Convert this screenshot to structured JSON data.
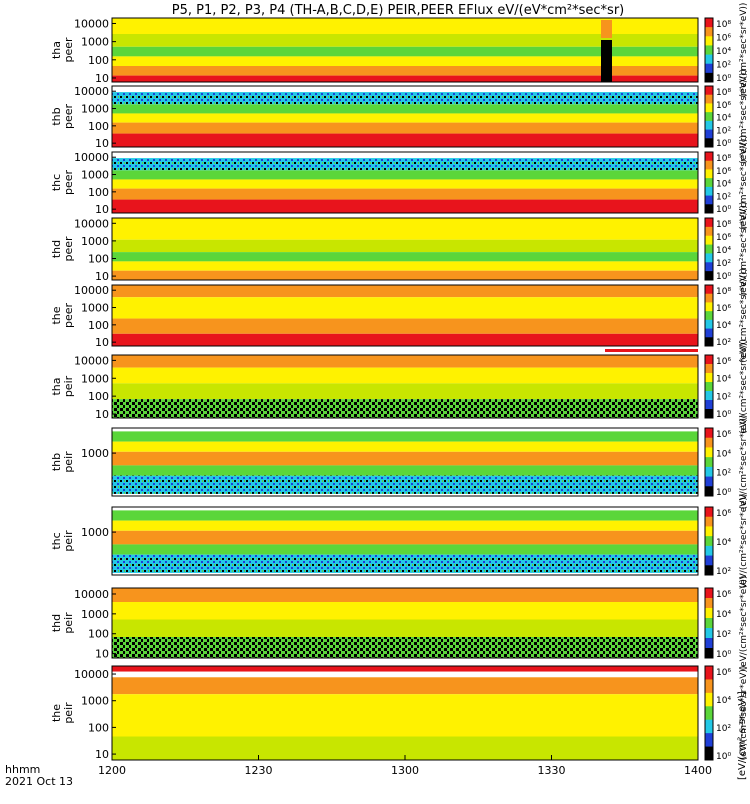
{
  "title": "P5, P1, P2, P3, P4 (TH-A,B,C,D,E) PEIR,PEER EFlux eV/(eV*cm²*sec*sr)",
  "x_axis": {
    "label_line1": "hhmm",
    "label_line2": "2021 Oct 13",
    "ticks": [
      "1200",
      "1230",
      "1300",
      "1330",
      "1400"
    ],
    "tick_values": [
      0,
      30,
      60,
      90,
      120
    ],
    "range_minutes": [
      0,
      120
    ]
  },
  "colorbar_label": "[eV/(cm²-s-sr-eV)]",
  "colors": {
    "red": "#e8141c",
    "orange": "#f7941d",
    "yellow": "#fff200",
    "yellowgreen": "#c8e600",
    "green": "#5bd63a",
    "cyan": "#23c8e6",
    "blue": "#1f3fd6",
    "black": "#000000",
    "white": "#ffffff"
  },
  "chart_data": [
    {
      "type": "heatmap",
      "name": "thd-peer",
      "ylabel": "tha\npeer",
      "yticks": [
        "10000",
        "1000",
        "100",
        "10"
      ],
      "ytick_values": [
        10000,
        1000,
        100,
        10
      ],
      "ylim": [
        6,
        20000
      ],
      "zscale": "log",
      "colorbar_ticks": [
        "10⁸",
        "10⁶",
        "10⁴",
        "10²",
        "10⁰"
      ],
      "colorbar_ticklabels": [
        "108",
        "106",
        "104",
        "102",
        "100"
      ],
      "colorbar_text": "(eV/(cm²*sec*sr*eV))"
    },
    {
      "type": "heatmap",
      "name": "thb-peer",
      "ylabel": "thb\npeer",
      "yticks": [
        "10000",
        "1000",
        "100",
        "10"
      ],
      "ytick_values": [
        10000,
        1000,
        100,
        10
      ],
      "ylim": [
        6,
        20000
      ],
      "zscale": "log",
      "colorbar_ticks": [
        "10⁸",
        "10⁶",
        "10⁴",
        "10²",
        "10⁰"
      ],
      "colorbar_ticklabels": [
        "108",
        "106",
        "104",
        "102",
        "100"
      ],
      "colorbar_text": "(eV/(cm²*sec*sr*eV))"
    },
    {
      "type": "heatmap",
      "name": "thc-peer",
      "ylabel": "thc\npeer",
      "yticks": [
        "10000",
        "1000",
        "100",
        "10"
      ],
      "ytick_values": [
        10000,
        1000,
        100,
        10
      ],
      "ylim": [
        6,
        20000
      ],
      "zscale": "log",
      "colorbar_ticks": [
        "10⁸",
        "10⁶",
        "10⁴",
        "10²",
        "10⁰"
      ],
      "colorbar_ticklabels": [
        "108",
        "106",
        "104",
        "102",
        "100"
      ],
      "colorbar_text": "(eV/(cm²*sec*sr*eV))"
    },
    {
      "type": "heatmap",
      "name": "thd-peer2",
      "ylabel": "thd\npeer",
      "yticks": [
        "10000",
        "1000",
        "100",
        "10"
      ],
      "ytick_values": [
        10000,
        1000,
        100,
        10
      ],
      "ylim": [
        6,
        20000
      ],
      "zscale": "log",
      "colorbar_ticks": [
        "10⁸",
        "10⁶",
        "10⁴",
        "10²",
        "10⁰"
      ],
      "colorbar_ticklabels": [
        "108",
        "106",
        "104",
        "102",
        "100"
      ],
      "colorbar_text": "(eV/(cm²*sec*sr*eV))"
    },
    {
      "type": "heatmap",
      "name": "the-peer",
      "ylabel": "the\npeer",
      "yticks": [
        "10000",
        "1000",
        "100",
        "10"
      ],
      "ytick_values": [
        10000,
        1000,
        100,
        10
      ],
      "ylim": [
        6,
        20000
      ],
      "zscale": "log",
      "colorbar_ticks": [
        "10⁸",
        "10⁶",
        "10⁴",
        "10²"
      ],
      "colorbar_ticklabels": [
        "108",
        "106",
        "104",
        "102"
      ],
      "colorbar_text": "(eV/(cm²*sec*sr*eV))"
    },
    {
      "type": "heatmap",
      "name": "tha-peir",
      "ylabel": "tha\npeir",
      "yticks": [
        "10000",
        "1000",
        "100",
        "10"
      ],
      "ytick_values": [
        10000,
        1000,
        100,
        10
      ],
      "ylim": [
        6,
        20000
      ],
      "zscale": "log",
      "colorbar_ticks": [
        "10⁶",
        "10⁴",
        "10²",
        "10⁰"
      ],
      "colorbar_ticklabels": [
        "106",
        "104",
        "102",
        "100"
      ],
      "colorbar_text": "(eV/(cm²*sec*sr*eV))"
    },
    {
      "type": "heatmap",
      "name": "thb-peir",
      "ylabel": "thb\npeir",
      "yticks": [
        "1000"
      ],
      "ytick_values": [
        1000
      ],
      "ylim": [
        6,
        20000
      ],
      "zscale": "log",
      "colorbar_ticks": [
        "10⁶",
        "10⁴",
        "10²",
        "10⁰"
      ],
      "colorbar_ticklabels": [
        "106",
        "104",
        "102",
        "100"
      ],
      "colorbar_text": "(eV/(cm²*sec*sr*eV))"
    },
    {
      "type": "heatmap",
      "name": "thc-peir",
      "ylabel": "thc\npeir",
      "yticks": [
        "1000"
      ],
      "ytick_values": [
        1000
      ],
      "ylim": [
        6,
        20000
      ],
      "zscale": "log",
      "colorbar_ticks": [
        "10⁶",
        "10⁴",
        "10²"
      ],
      "colorbar_ticklabels": [
        "106",
        "104",
        "102"
      ],
      "colorbar_text": "(eV/(cm²*sec*sr*eV))"
    },
    {
      "type": "heatmap",
      "name": "thd-peir",
      "ylabel": "thd\npeir",
      "yticks": [
        "10000",
        "1000",
        "100",
        "10"
      ],
      "ytick_values": [
        10000,
        1000,
        100,
        10
      ],
      "ylim": [
        6,
        20000
      ],
      "zscale": "log",
      "colorbar_ticks": [
        "10⁶",
        "10⁴",
        "10²",
        "10⁰"
      ],
      "colorbar_ticklabels": [
        "106",
        "104",
        "102",
        "100"
      ],
      "colorbar_text": "(eV/(cm²*sec*sr*eV))"
    },
    {
      "type": "heatmap",
      "name": "the-peir",
      "ylabel": "the\npeir",
      "yticks": [
        "10000",
        "1000",
        "100",
        "10"
      ],
      "ytick_values": [
        10000,
        1000,
        100,
        10
      ],
      "ylim": [
        6,
        20000
      ],
      "zscale": "log",
      "colorbar_ticks": [
        "10⁶",
        "10⁴",
        "10²",
        "10⁰"
      ],
      "colorbar_ticklabels": [
        "106",
        "104",
        "102",
        "100"
      ],
      "colorbar_text": "(eV/(cm²*sec*sr*eV))"
    }
  ],
  "panel_labels": [
    {
      "line1": "tha",
      "line2": "peer"
    },
    {
      "line1": "thb",
      "line2": "peer"
    },
    {
      "line1": "thc",
      "line2": "peer"
    },
    {
      "line1": "thd",
      "line2": "peer"
    },
    {
      "line1": "the",
      "line2": "peer"
    },
    {
      "line1": "tha",
      "line2": "peir"
    },
    {
      "line1": "thb",
      "line2": "peir"
    },
    {
      "line1": "thc",
      "line2": "peir"
    },
    {
      "line1": "thd",
      "line2": "peir"
    },
    {
      "line1": "the",
      "line2": "peir"
    }
  ]
}
